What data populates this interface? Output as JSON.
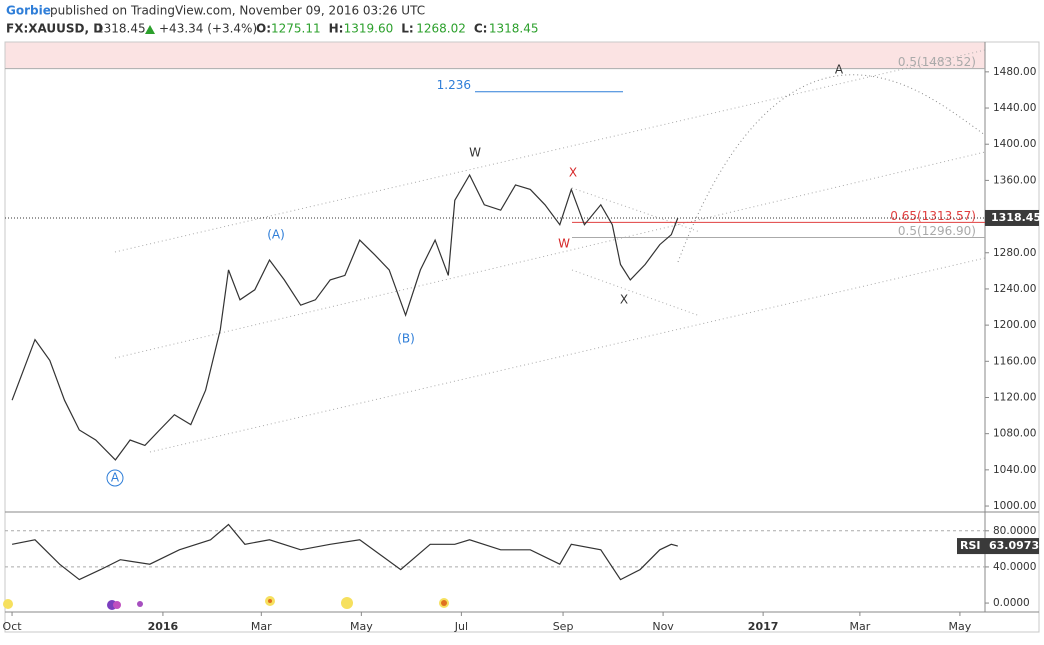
{
  "header": {
    "user": "Gorbie",
    "published": "published on TradingView.com, November 09, 2016 03:26 UTC",
    "symbol": "FX:XAUUSD, D",
    "last": "1318.45",
    "change": "+43.34 (+3.4%)",
    "ohlc": [
      {
        "label": "O:",
        "value": "1275.11"
      },
      {
        "label": "H:",
        "value": "1319.60"
      },
      {
        "label": "L:",
        "value": "1268.02"
      },
      {
        "label": "C:",
        "value": "1318.45"
      }
    ]
  },
  "chart_data": [
    {
      "type": "line",
      "name": "price",
      "color": "#333333",
      "x": [
        0,
        14,
        23,
        32,
        41,
        51,
        63,
        72,
        81,
        90,
        99,
        109,
        118,
        127,
        132,
        139,
        148,
        157,
        166,
        176,
        185,
        194,
        203,
        212,
        221,
        230,
        240,
        249,
        258,
        266,
        270,
        279,
        288,
        298,
        307,
        316,
        325,
        334,
        341,
        349,
        359,
        366,
        371,
        377,
        386,
        395,
        402,
        406
      ],
      "values": [
        1117,
        1184,
        1161,
        1117,
        1084,
        1073,
        1051,
        1073,
        1067,
        1084,
        1101,
        1090,
        1128,
        1195,
        1261,
        1228,
        1239,
        1272,
        1250,
        1222,
        1228,
        1250,
        1255,
        1294,
        1278,
        1261,
        1211,
        1261,
        1294,
        1255,
        1338,
        1366,
        1333,
        1327,
        1355,
        1350,
        1333,
        1311,
        1350,
        1311,
        1333,
        1311,
        1267,
        1250,
        1267,
        1289,
        1300,
        1318.45
      ],
      "last_label": "1318.45",
      "xlim": [
        -4.3,
        593.3
      ],
      "xticks": [
        {
          "value": 0,
          "label": "Oct"
        },
        {
          "value": 92,
          "label": "2016"
        },
        {
          "value": 152,
          "label": "Mar"
        },
        {
          "value": 213,
          "label": "May"
        },
        {
          "value": 274,
          "label": "Jul"
        },
        {
          "value": 336,
          "label": "Sep"
        },
        {
          "value": 397,
          "label": "Nov"
        },
        {
          "value": 458,
          "label": "2017"
        },
        {
          "value": 517,
          "label": "Mar"
        },
        {
          "value": 578,
          "label": "May"
        }
      ],
      "ylim": [
        993.4,
        1513.0
      ],
      "yticks": [
        {
          "value": 1000,
          "label": "1000.00"
        },
        {
          "value": 1040,
          "label": "1040.00"
        },
        {
          "value": 1080,
          "label": "1080.00"
        },
        {
          "value": 1120,
          "label": "1120.00"
        },
        {
          "value": 1160,
          "label": "1160.00"
        },
        {
          "value": 1200,
          "label": "1200.00"
        },
        {
          "value": 1240,
          "label": "1240.00"
        },
        {
          "value": 1280,
          "label": "1280.00"
        },
        {
          "value": 1320,
          "label": "1320.00"
        },
        {
          "value": 1360,
          "label": "1360.00"
        },
        {
          "value": 1400,
          "label": "1400.00"
        },
        {
          "value": 1440,
          "label": "1440.00"
        },
        {
          "value": 1480,
          "label": "1480.00"
        }
      ],
      "levels": [
        {
          "label": "0.5(1483.52)",
          "value": 1483.52,
          "color": "#aaaaaa"
        },
        {
          "label": "0.65(1313.57)",
          "value": 1313.57,
          "color": "#e04040"
        },
        {
          "label": "0.5(1296.90)",
          "value": 1296.9,
          "color": "#aaaaaa"
        },
        {
          "label": "1.236",
          "value": 1458,
          "color": "#2f7ed8"
        }
      ],
      "annotations": [
        "W",
        "X",
        "W",
        "X",
        "(A)",
        "(B)",
        "A",
        "A"
      ]
    },
    {
      "type": "line",
      "name": "RSI",
      "color": "#333333",
      "x": [
        0,
        14,
        29,
        41,
        54,
        66,
        84,
        102,
        121,
        132,
        142,
        157,
        176,
        194,
        212,
        237,
        255,
        270,
        279,
        298,
        316,
        334,
        341,
        359,
        371,
        383,
        395,
        402,
        406
      ],
      "values": [
        65,
        70,
        43,
        26,
        37,
        48,
        43,
        59,
        70,
        87,
        65,
        70,
        59,
        65,
        70,
        37,
        65,
        65,
        70,
        59,
        59,
        43,
        65,
        59,
        26,
        37,
        59,
        65,
        63.0973
      ],
      "last_label": "63.0973",
      "ylim": [
        -9.9,
        99.7
      ],
      "yticks": [
        {
          "value": 0,
          "label": "0.0000"
        },
        {
          "value": 40,
          "label": "40.0000"
        },
        {
          "value": 80,
          "label": "80.0000"
        }
      ]
    }
  ]
}
